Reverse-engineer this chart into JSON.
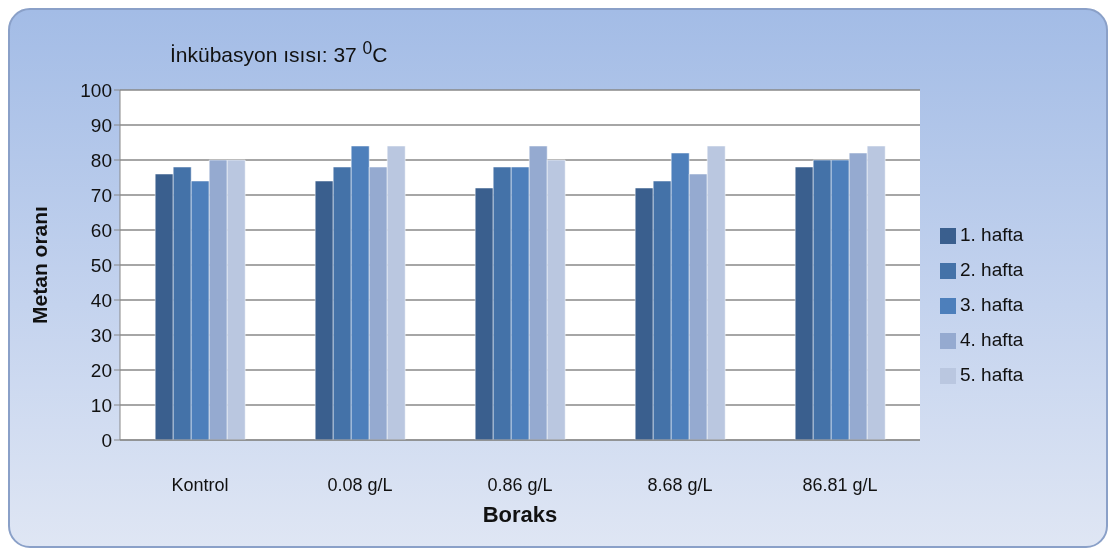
{
  "chart_data": {
    "type": "bar",
    "title": "İnkübasyon ısısı: 37 $^{0}$C",
    "xlabel": "Boraks",
    "ylabel": "Metan oranı",
    "categories": [
      "Kontrol",
      "0.08 g/L",
      "0.86 g/L",
      "8.68 g/L",
      "86.81 g/L"
    ],
    "series": [
      {
        "name": "1. hafta",
        "color": "#3a5f8e",
        "values": [
          76,
          74,
          72,
          72,
          78
        ]
      },
      {
        "name": "2. hafta",
        "color": "#4472a8",
        "values": [
          78,
          78,
          78,
          74,
          80
        ]
      },
      {
        "name": "3. hafta",
        "color": "#4d7fbb",
        "values": [
          74,
          84,
          78,
          82,
          80
        ]
      },
      {
        "name": "4. hafta",
        "color": "#95aad0",
        "values": [
          80,
          78,
          84,
          76,
          82
        ]
      },
      {
        "name": "5. hafta",
        "color": "#bac7e0",
        "values": [
          80,
          84,
          80,
          84,
          84
        ]
      }
    ],
    "ylim": [
      0,
      100
    ],
    "yticks": [
      0,
      10,
      20,
      30,
      40,
      50,
      60,
      70,
      80,
      90,
      100
    ],
    "grid": "y",
    "legend": "right"
  }
}
